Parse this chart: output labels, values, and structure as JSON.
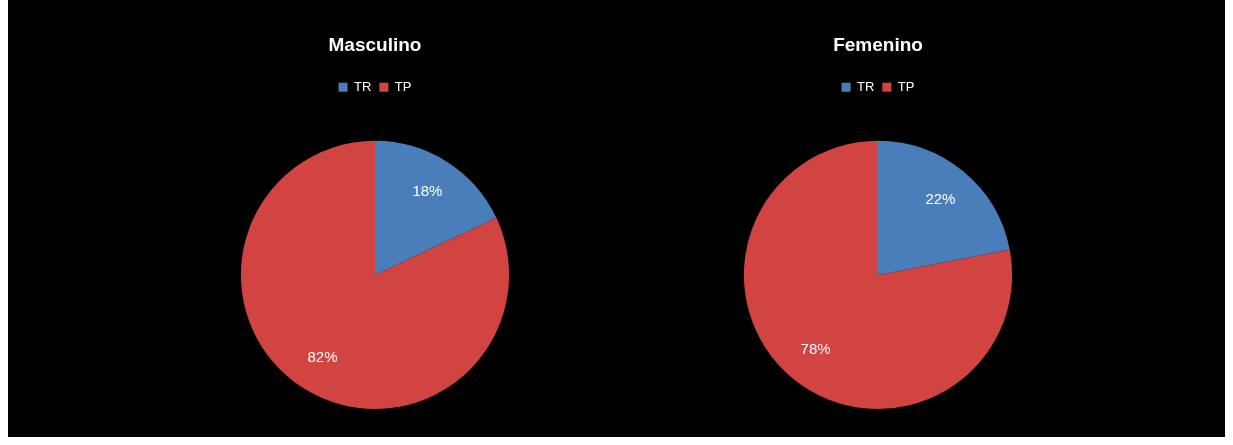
{
  "chart_data": [
    {
      "type": "pie",
      "title": "Masculino",
      "categories": [
        "TR",
        "TP"
      ],
      "values": [
        18,
        82
      ],
      "value_labels": [
        "18%",
        "82%"
      ],
      "colors": [
        "#4a7ebb",
        "#d24441"
      ],
      "legend": "top"
    },
    {
      "type": "pie",
      "title": "Femenino",
      "categories": [
        "TR",
        "TP"
      ],
      "values": [
        22,
        78
      ],
      "value_labels": [
        "22%",
        "78%"
      ],
      "colors": [
        "#4a7ebb",
        "#d24441"
      ],
      "legend": "top"
    }
  ]
}
